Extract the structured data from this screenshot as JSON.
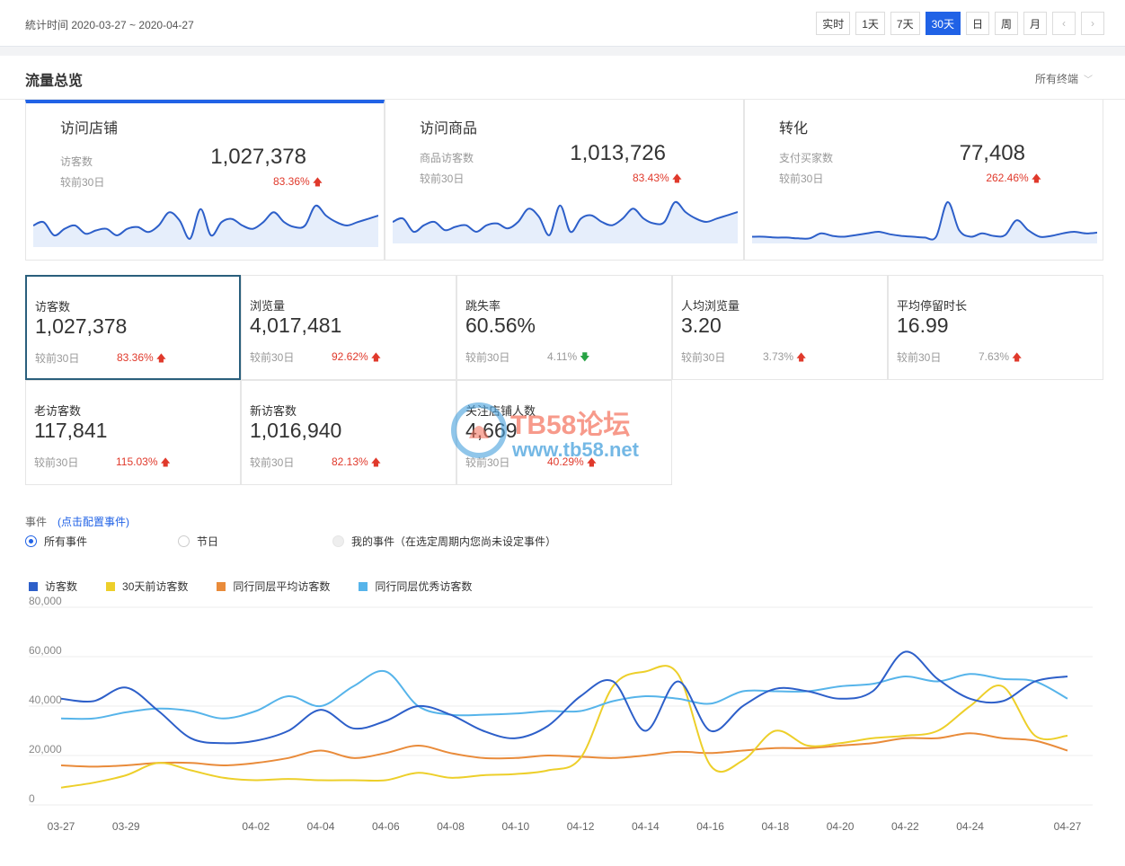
{
  "topbar": {
    "period_label": "統计时间 2020-03-27 ~ 2020-04-27",
    "ranges": [
      "实时",
      "1天",
      "7天",
      "30天",
      "日",
      "周",
      "月"
    ],
    "active_range": "30天",
    "prev_icon": "chevron-left-icon",
    "next_icon": "chevron-right-icon"
  },
  "section": {
    "title": "流量总览",
    "terminal_select": "所有终端"
  },
  "big_cards": [
    {
      "title": "访问店铺",
      "label": "访客数",
      "value": "1,027,378",
      "compare_label": "较前30日",
      "pct": "83.36%",
      "trend": "up",
      "active": true,
      "spark": [
        42,
        44,
        36,
        40,
        42,
        37,
        39,
        40,
        36,
        40,
        41,
        38,
        42,
        50,
        45,
        34,
        52,
        36,
        44,
        46,
        42,
        40,
        44,
        50,
        44,
        41,
        42,
        54,
        48,
        44,
        42,
        44,
        46,
        48
      ]
    },
    {
      "title": "访问商品",
      "label": "商品访客数",
      "value": "1,013,726",
      "compare_label": "较前30日",
      "pct": "83.43%",
      "trend": "up",
      "active": false,
      "spark": [
        42,
        44,
        36,
        40,
        42,
        37,
        39,
        40,
        36,
        40,
        41,
        38,
        42,
        50,
        45,
        34,
        52,
        36,
        44,
        46,
        42,
        40,
        44,
        50,
        44,
        41,
        42,
        54,
        48,
        44,
        42,
        44,
        46,
        48
      ]
    },
    {
      "title": "转化",
      "label": "支付买家数",
      "value": "77,408",
      "compare_label": "较前30日",
      "pct": "262.46%",
      "trend": "up",
      "active": false,
      "spark": [
        36,
        36,
        35,
        35,
        34,
        34,
        40,
        37,
        36,
        38,
        40,
        42,
        39,
        37,
        36,
        35,
        36,
        78,
        44,
        36,
        40,
        37,
        38,
        56,
        44,
        36,
        37,
        40,
        42,
        40,
        41
      ]
    }
  ],
  "metrics": [
    {
      "label": "访客数",
      "value": "1,027,378",
      "compare_label": "较前30日",
      "pct": "83.36%",
      "trend": "up"
    },
    {
      "label": "浏览量",
      "value": "4,017,481",
      "compare_label": "较前30日",
      "pct": "92.62%",
      "trend": "up"
    },
    {
      "label": "跳失率",
      "value": "60.56%",
      "compare_label": "较前30日",
      "pct": "4.11%",
      "trend": "down"
    },
    {
      "label": "人均浏览量",
      "value": "3.20",
      "compare_label": "较前30日",
      "pct": "3.73%",
      "trend": "up"
    },
    {
      "label": "平均停留时长",
      "value": "16.99",
      "compare_label": "较前30日",
      "pct": "7.63%",
      "trend": "up"
    },
    {
      "label": "老访客数",
      "value": "117,841",
      "compare_label": "较前30日",
      "pct": "115.03%",
      "trend": "up"
    },
    {
      "label": "新访客数",
      "value": "1,016,940",
      "compare_label": "较前30日",
      "pct": "82.13%",
      "trend": "up"
    },
    {
      "label": "关注店铺人数",
      "value": "4,669",
      "compare_label": "较前30日",
      "pct": "40.29%",
      "trend": "up"
    }
  ],
  "watermark": {
    "line1": "TB58论坛",
    "line2": "www.tb58.net"
  },
  "events": {
    "label": "事件",
    "config_link": "(点击配置事件)",
    "options": [
      "所有事件",
      "节日",
      "我的事件（在选定周期内您尚未设定事件）"
    ],
    "selected": "所有事件"
  },
  "colors": {
    "accent": "#2062e6",
    "up": "#e0392b",
    "down": "#27a344",
    "series": [
      "#2d5fc9",
      "#edcf2a",
      "#e98b3a",
      "#56b4ea"
    ]
  },
  "chart_data": {
    "type": "line",
    "x": [
      "03-27",
      "03-28",
      "03-29",
      "03-30",
      "03-31",
      "04-01",
      "04-02",
      "04-03",
      "04-04",
      "04-05",
      "04-06",
      "04-07",
      "04-08",
      "04-09",
      "04-10",
      "04-11",
      "04-12",
      "04-13",
      "04-14",
      "04-15",
      "04-16",
      "04-17",
      "04-18",
      "04-19",
      "04-20",
      "04-21",
      "04-22",
      "04-23",
      "04-24",
      "04-25",
      "04-26",
      "04-27"
    ],
    "x_tick_labels": [
      "03-27",
      "03-29",
      "04-02",
      "04-04",
      "04-06",
      "04-08",
      "04-10",
      "04-12",
      "04-14",
      "04-16",
      "04-18",
      "04-20",
      "04-22",
      "04-24",
      "04-27"
    ],
    "ylim": [
      0,
      80000
    ],
    "y_ticks": [
      "80,000",
      "60,000",
      "40,000",
      "20,000",
      "0"
    ],
    "legend_position": "top-left",
    "series": [
      {
        "name": "访客数",
        "values": [
          43000,
          42000,
          47500,
          38000,
          27000,
          25000,
          26000,
          30000,
          38500,
          31000,
          34000,
          40000,
          36500,
          30000,
          27000,
          32000,
          44000,
          50000,
          30000,
          50000,
          30000,
          40000,
          47000,
          46000,
          43000,
          46000,
          62000,
          51000,
          43000,
          42000,
          50000,
          52000
        ]
      },
      {
        "name": "30天前访客数",
        "values": [
          7000,
          9000,
          12000,
          17000,
          14000,
          11000,
          10000,
          10500,
          10000,
          10000,
          10000,
          13000,
          11000,
          12000,
          12500,
          14000,
          19000,
          48000,
          54000,
          53000,
          16000,
          18000,
          30000,
          24000,
          25000,
          27000,
          28000,
          30000,
          40000,
          48000,
          28000,
          28000
        ]
      },
      {
        "name": "同行同层平均访客数",
        "values": [
          16000,
          15500,
          16000,
          17000,
          17000,
          16000,
          17000,
          19000,
          22000,
          19000,
          21000,
          24000,
          21000,
          19000,
          19000,
          20000,
          19500,
          19000,
          20000,
          21500,
          21000,
          22000,
          23000,
          23000,
          24000,
          25000,
          27000,
          27000,
          29000,
          27000,
          26000,
          22000
        ]
      },
      {
        "name": "同行同层优秀访客数",
        "values": [
          35000,
          35000,
          37500,
          39000,
          38000,
          35000,
          38000,
          44000,
          40000,
          48000,
          54000,
          40000,
          36500,
          36500,
          37000,
          38000,
          38000,
          42000,
          44000,
          43000,
          41000,
          46000,
          46000,
          46000,
          48000,
          49000,
          52000,
          50000,
          53000,
          51000,
          50000,
          43000
        ]
      }
    ]
  }
}
